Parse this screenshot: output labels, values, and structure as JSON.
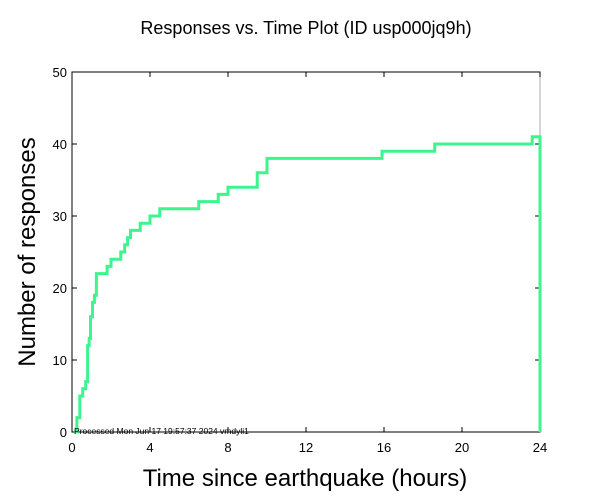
{
  "chart_data": {
    "type": "line",
    "title": "Responses vs. Time Plot (ID usp000jq9h)",
    "xlabel": "Time since earthquake (hours)",
    "ylabel": "Number of responses",
    "xlim": [
      0,
      24
    ],
    "ylim": [
      0,
      50
    ],
    "xticks": [
      0,
      4,
      8,
      12,
      16,
      20,
      24
    ],
    "yticks": [
      0,
      10,
      20,
      30,
      40,
      50
    ],
    "grid": false,
    "line_color": "#3cf58f",
    "note": "Processed Mon Jun 17 19:57:37 2024 vmdyli1",
    "series": [
      {
        "step": true,
        "x": [
          0.1,
          0.25,
          0.4,
          0.55,
          0.7,
          0.8,
          0.88,
          0.95,
          1.05,
          1.15,
          1.25,
          1.35,
          1.5,
          1.8,
          2.0,
          2.5,
          2.7,
          2.85,
          3.0,
          3.3,
          3.5,
          4.0,
          4.5,
          5.5,
          6.5,
          7.5,
          8.0,
          9.5,
          10.0,
          11.0,
          12.0,
          14.0,
          15.9,
          17.0,
          18.6,
          20.0,
          23.5,
          23.6,
          23.9,
          24.0
        ],
        "y": [
          0,
          2,
          5,
          6,
          7,
          12,
          13,
          16,
          18,
          19,
          22,
          22,
          22,
          23,
          24,
          25,
          26,
          27,
          28,
          28,
          29,
          30,
          31,
          31,
          32,
          33,
          34,
          36,
          38,
          38,
          38,
          38,
          39,
          39,
          40,
          40,
          40,
          41,
          41,
          0
        ]
      }
    ]
  }
}
